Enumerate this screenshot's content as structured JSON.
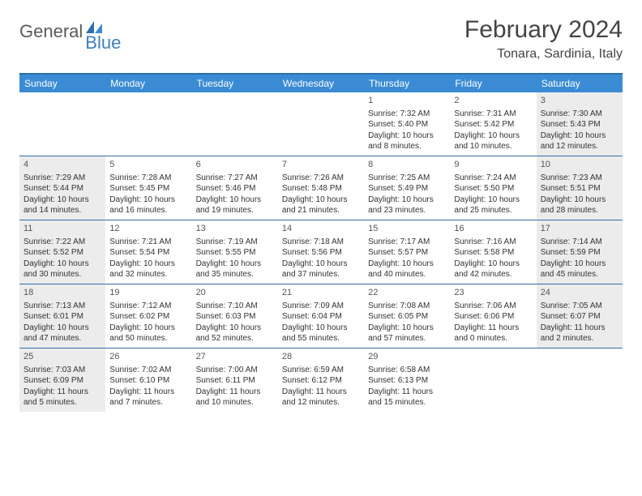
{
  "logo": {
    "text1": "General",
    "text2": "Blue"
  },
  "title": "February 2024",
  "location": "Tonara, Sardinia, Italy",
  "colors": {
    "header_bg": "#3b8bd4",
    "border": "#2f6fa8",
    "shade": "#ececec",
    "logo_gray": "#5a5a5a",
    "logo_blue": "#3b7fc4"
  },
  "day_headers": [
    "Sunday",
    "Monday",
    "Tuesday",
    "Wednesday",
    "Thursday",
    "Friday",
    "Saturday"
  ],
  "weeks": [
    [
      {
        "blank": true,
        "shade": false
      },
      {
        "blank": true,
        "shade": false
      },
      {
        "blank": true,
        "shade": false
      },
      {
        "blank": true,
        "shade": false
      },
      {
        "day": "1",
        "sunrise": "Sunrise: 7:32 AM",
        "sunset": "Sunset: 5:40 PM",
        "daylight1": "Daylight: 10 hours",
        "daylight2": "and 8 minutes.",
        "shade": false
      },
      {
        "day": "2",
        "sunrise": "Sunrise: 7:31 AM",
        "sunset": "Sunset: 5:42 PM",
        "daylight1": "Daylight: 10 hours",
        "daylight2": "and 10 minutes.",
        "shade": false
      },
      {
        "day": "3",
        "sunrise": "Sunrise: 7:30 AM",
        "sunset": "Sunset: 5:43 PM",
        "daylight1": "Daylight: 10 hours",
        "daylight2": "and 12 minutes.",
        "shade": true
      }
    ],
    [
      {
        "day": "4",
        "sunrise": "Sunrise: 7:29 AM",
        "sunset": "Sunset: 5:44 PM",
        "daylight1": "Daylight: 10 hours",
        "daylight2": "and 14 minutes.",
        "shade": true
      },
      {
        "day": "5",
        "sunrise": "Sunrise: 7:28 AM",
        "sunset": "Sunset: 5:45 PM",
        "daylight1": "Daylight: 10 hours",
        "daylight2": "and 16 minutes.",
        "shade": false
      },
      {
        "day": "6",
        "sunrise": "Sunrise: 7:27 AM",
        "sunset": "Sunset: 5:46 PM",
        "daylight1": "Daylight: 10 hours",
        "daylight2": "and 19 minutes.",
        "shade": false
      },
      {
        "day": "7",
        "sunrise": "Sunrise: 7:26 AM",
        "sunset": "Sunset: 5:48 PM",
        "daylight1": "Daylight: 10 hours",
        "daylight2": "and 21 minutes.",
        "shade": false
      },
      {
        "day": "8",
        "sunrise": "Sunrise: 7:25 AM",
        "sunset": "Sunset: 5:49 PM",
        "daylight1": "Daylight: 10 hours",
        "daylight2": "and 23 minutes.",
        "shade": false
      },
      {
        "day": "9",
        "sunrise": "Sunrise: 7:24 AM",
        "sunset": "Sunset: 5:50 PM",
        "daylight1": "Daylight: 10 hours",
        "daylight2": "and 25 minutes.",
        "shade": false
      },
      {
        "day": "10",
        "sunrise": "Sunrise: 7:23 AM",
        "sunset": "Sunset: 5:51 PM",
        "daylight1": "Daylight: 10 hours",
        "daylight2": "and 28 minutes.",
        "shade": true
      }
    ],
    [
      {
        "day": "11",
        "sunrise": "Sunrise: 7:22 AM",
        "sunset": "Sunset: 5:52 PM",
        "daylight1": "Daylight: 10 hours",
        "daylight2": "and 30 minutes.",
        "shade": true
      },
      {
        "day": "12",
        "sunrise": "Sunrise: 7:21 AM",
        "sunset": "Sunset: 5:54 PM",
        "daylight1": "Daylight: 10 hours",
        "daylight2": "and 32 minutes.",
        "shade": false
      },
      {
        "day": "13",
        "sunrise": "Sunrise: 7:19 AM",
        "sunset": "Sunset: 5:55 PM",
        "daylight1": "Daylight: 10 hours",
        "daylight2": "and 35 minutes.",
        "shade": false
      },
      {
        "day": "14",
        "sunrise": "Sunrise: 7:18 AM",
        "sunset": "Sunset: 5:56 PM",
        "daylight1": "Daylight: 10 hours",
        "daylight2": "and 37 minutes.",
        "shade": false
      },
      {
        "day": "15",
        "sunrise": "Sunrise: 7:17 AM",
        "sunset": "Sunset: 5:57 PM",
        "daylight1": "Daylight: 10 hours",
        "daylight2": "and 40 minutes.",
        "shade": false
      },
      {
        "day": "16",
        "sunrise": "Sunrise: 7:16 AM",
        "sunset": "Sunset: 5:58 PM",
        "daylight1": "Daylight: 10 hours",
        "daylight2": "and 42 minutes.",
        "shade": false
      },
      {
        "day": "17",
        "sunrise": "Sunrise: 7:14 AM",
        "sunset": "Sunset: 5:59 PM",
        "daylight1": "Daylight: 10 hours",
        "daylight2": "and 45 minutes.",
        "shade": true
      }
    ],
    [
      {
        "day": "18",
        "sunrise": "Sunrise: 7:13 AM",
        "sunset": "Sunset: 6:01 PM",
        "daylight1": "Daylight: 10 hours",
        "daylight2": "and 47 minutes.",
        "shade": true
      },
      {
        "day": "19",
        "sunrise": "Sunrise: 7:12 AM",
        "sunset": "Sunset: 6:02 PM",
        "daylight1": "Daylight: 10 hours",
        "daylight2": "and 50 minutes.",
        "shade": false
      },
      {
        "day": "20",
        "sunrise": "Sunrise: 7:10 AM",
        "sunset": "Sunset: 6:03 PM",
        "daylight1": "Daylight: 10 hours",
        "daylight2": "and 52 minutes.",
        "shade": false
      },
      {
        "day": "21",
        "sunrise": "Sunrise: 7:09 AM",
        "sunset": "Sunset: 6:04 PM",
        "daylight1": "Daylight: 10 hours",
        "daylight2": "and 55 minutes.",
        "shade": false
      },
      {
        "day": "22",
        "sunrise": "Sunrise: 7:08 AM",
        "sunset": "Sunset: 6:05 PM",
        "daylight1": "Daylight: 10 hours",
        "daylight2": "and 57 minutes.",
        "shade": false
      },
      {
        "day": "23",
        "sunrise": "Sunrise: 7:06 AM",
        "sunset": "Sunset: 6:06 PM",
        "daylight1": "Daylight: 11 hours",
        "daylight2": "and 0 minutes.",
        "shade": false
      },
      {
        "day": "24",
        "sunrise": "Sunrise: 7:05 AM",
        "sunset": "Sunset: 6:07 PM",
        "daylight1": "Daylight: 11 hours",
        "daylight2": "and 2 minutes.",
        "shade": true
      }
    ],
    [
      {
        "day": "25",
        "sunrise": "Sunrise: 7:03 AM",
        "sunset": "Sunset: 6:09 PM",
        "daylight1": "Daylight: 11 hours",
        "daylight2": "and 5 minutes.",
        "shade": true
      },
      {
        "day": "26",
        "sunrise": "Sunrise: 7:02 AM",
        "sunset": "Sunset: 6:10 PM",
        "daylight1": "Daylight: 11 hours",
        "daylight2": "and 7 minutes.",
        "shade": false
      },
      {
        "day": "27",
        "sunrise": "Sunrise: 7:00 AM",
        "sunset": "Sunset: 6:11 PM",
        "daylight1": "Daylight: 11 hours",
        "daylight2": "and 10 minutes.",
        "shade": false
      },
      {
        "day": "28",
        "sunrise": "Sunrise: 6:59 AM",
        "sunset": "Sunset: 6:12 PM",
        "daylight1": "Daylight: 11 hours",
        "daylight2": "and 12 minutes.",
        "shade": false
      },
      {
        "day": "29",
        "sunrise": "Sunrise: 6:58 AM",
        "sunset": "Sunset: 6:13 PM",
        "daylight1": "Daylight: 11 hours",
        "daylight2": "and 15 minutes.",
        "shade": false
      },
      {
        "blank": true,
        "shade": false
      },
      {
        "blank": true,
        "shade": false
      }
    ]
  ]
}
